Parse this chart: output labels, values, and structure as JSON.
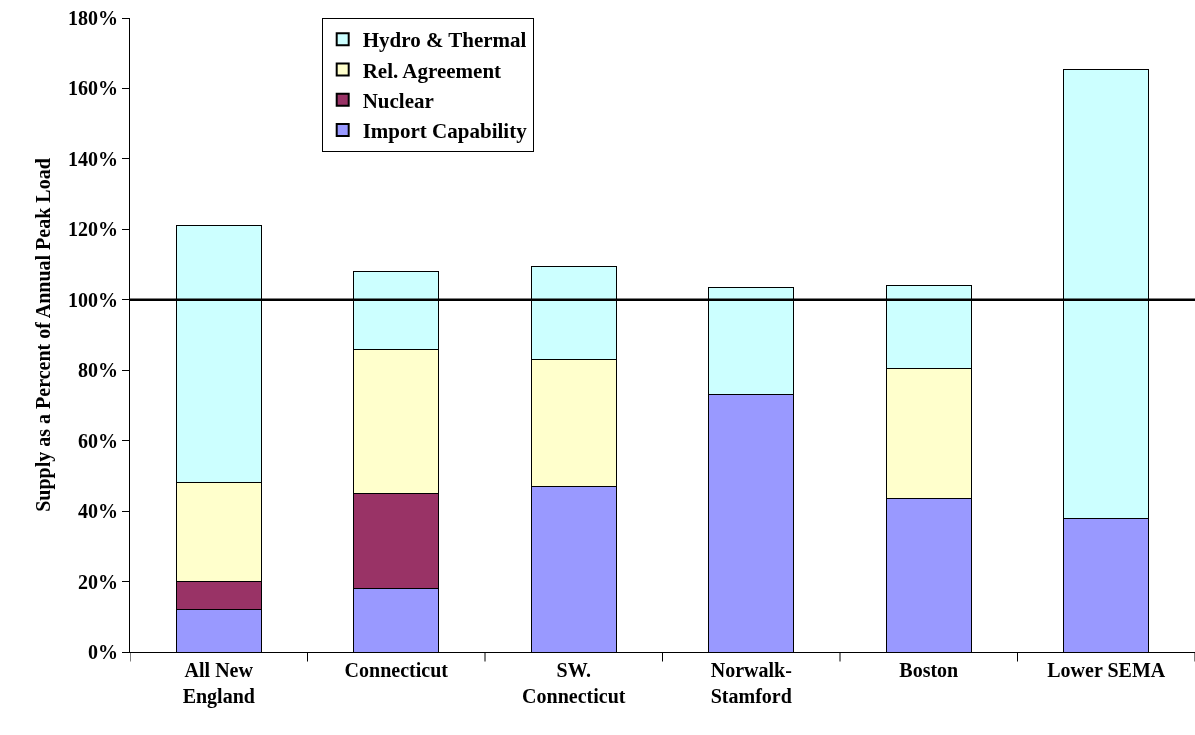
{
  "chart_data": {
    "type": "bar",
    "stacked": true,
    "ylabel": "Supply as a Percent of Annual Peak Load",
    "categories": [
      "All New England",
      "Connecticut",
      "SW. Connecticut",
      "Norwalk-Stamford",
      "Boston",
      "Lower SEMA"
    ],
    "series": [
      {
        "name": "Import Capability",
        "color": "#9999ff",
        "values": [
          12,
          18,
          47,
          73,
          43.5,
          38
        ]
      },
      {
        "name": "Nuclear",
        "color": "#993366",
        "values": [
          8,
          27,
          null,
          null,
          null,
          null
        ]
      },
      {
        "name": "Rel. Agreement",
        "color": "#ffffcc",
        "values": [
          28,
          41,
          36,
          null,
          37,
          null
        ]
      },
      {
        "name": "Hydro & Thermal",
        "color": "#ccffff",
        "values": [
          73,
          22,
          26.5,
          30.5,
          23.5,
          127.5
        ]
      }
    ],
    "ylim": [
      0,
      180
    ],
    "yticks": [
      {
        "value": 0,
        "label": "0%"
      },
      {
        "value": 20,
        "label": "20%"
      },
      {
        "value": 40,
        "label": "40%"
      },
      {
        "value": 60,
        "label": "60%"
      },
      {
        "value": 80,
        "label": "80%"
      },
      {
        "value": 100,
        "label": "100%"
      },
      {
        "value": 120,
        "label": "120%"
      },
      {
        "value": 140,
        "label": "140%"
      },
      {
        "value": 160,
        "label": "160%"
      },
      {
        "value": 180,
        "label": "180%"
      }
    ],
    "ref_lines": [
      {
        "axis": "y",
        "value": 100,
        "color": "#000000"
      }
    ],
    "grid": false,
    "legend": "top left"
  }
}
